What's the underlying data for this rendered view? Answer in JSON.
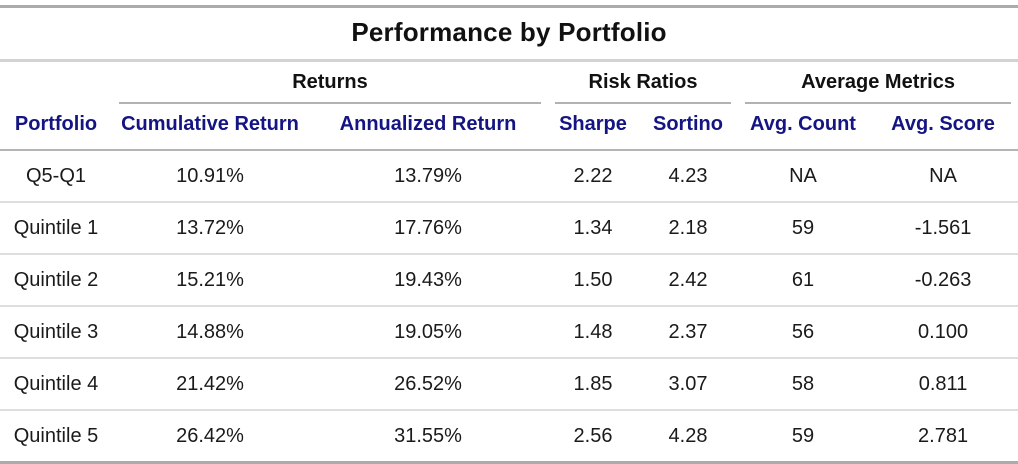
{
  "chart_data": {
    "type": "table",
    "title": "Performance by Portfolio",
    "spanners": [
      {
        "label": "Returns",
        "span": 2
      },
      {
        "label": "Risk Ratios",
        "span": 2
      },
      {
        "label": "Average Metrics",
        "span": 2
      }
    ],
    "columns": [
      "Portfolio",
      "Cumulative Return",
      "Annualized Return",
      "Sharpe",
      "Sortino",
      "Avg. Count",
      "Avg. Score"
    ],
    "rows": [
      [
        "Q5-Q1",
        "10.91%",
        "13.79%",
        "2.22",
        "4.23",
        "NA",
        "NA"
      ],
      [
        "Quintile 1",
        "13.72%",
        "17.76%",
        "1.34",
        "2.18",
        "59",
        "-1.561"
      ],
      [
        "Quintile 2",
        "15.21%",
        "19.43%",
        "1.50",
        "2.42",
        "61",
        "-0.263"
      ],
      [
        "Quintile 3",
        "14.88%",
        "19.05%",
        "1.48",
        "2.37",
        "56",
        "0.100"
      ],
      [
        "Quintile 4",
        "21.42%",
        "26.52%",
        "1.85",
        "3.07",
        "58",
        "0.811"
      ],
      [
        "Quintile 5",
        "26.42%",
        "31.55%",
        "2.56",
        "4.28",
        "59",
        "2.781"
      ]
    ],
    "layout": {
      "alignment": "center",
      "gridlines": "horizontal-only"
    },
    "colors": {
      "title_text": "#111111",
      "column_header_text": "#141482",
      "body_text": "#1A1A1A",
      "outer_border": "#ABABAB",
      "title_underline": "#D3D3D3",
      "spanner_underline": "#B2B2B2",
      "header_underline": "#B5B5B5",
      "row_separator": "#DEDEDE",
      "background": "#FFFFFF"
    }
  }
}
